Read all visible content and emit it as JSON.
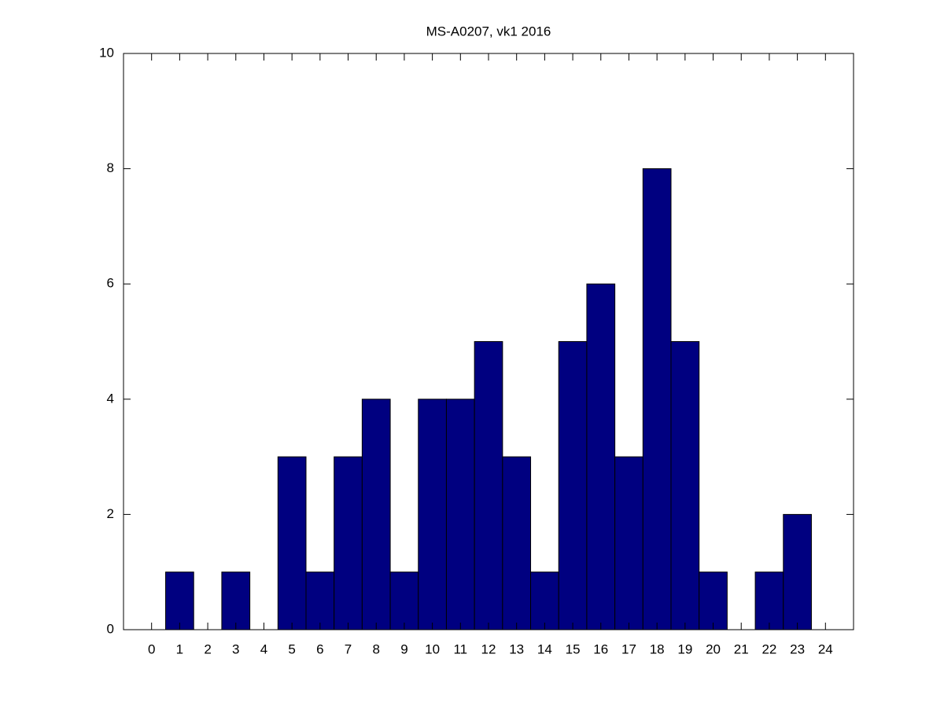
{
  "chart_data": {
    "type": "bar",
    "title": "MS-A0207, vk1 2016",
    "x": [
      0,
      1,
      2,
      3,
      4,
      5,
      6,
      7,
      8,
      9,
      10,
      11,
      12,
      13,
      14,
      15,
      16,
      17,
      18,
      19,
      20,
      21,
      22,
      23,
      24
    ],
    "values": [
      0,
      1,
      0,
      1,
      0,
      3,
      1,
      3,
      4,
      1,
      4,
      4,
      5,
      3,
      1,
      5,
      6,
      3,
      8,
      5,
      1,
      0,
      1,
      2,
      0
    ],
    "color": "#000080",
    "xlim": [
      -1,
      25
    ],
    "xticks": [
      0,
      1,
      2,
      3,
      4,
      5,
      6,
      7,
      8,
      9,
      10,
      11,
      12,
      13,
      14,
      15,
      16,
      17,
      18,
      19,
      20,
      21,
      22,
      23,
      24
    ],
    "ylim": [
      0,
      10
    ],
    "yticks": [
      0,
      2,
      4,
      6,
      8,
      10
    ],
    "grid": false
  }
}
